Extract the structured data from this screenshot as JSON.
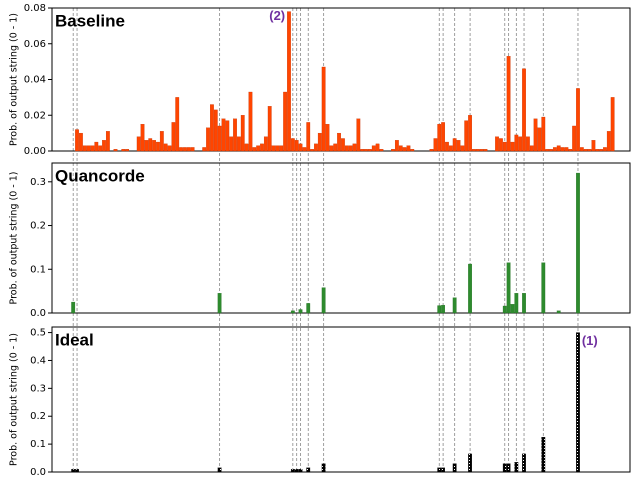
{
  "chart_data": [
    {
      "type": "bar",
      "title": "Baseline",
      "y_label": "Prob. of output string (0 - 1)",
      "color": "#ff4500",
      "annotation": "(2)",
      "ylim": [
        0,
        0.08
      ],
      "yticks": [
        {
          "value": 0,
          "label": "0.00"
        },
        {
          "value": 0.02,
          "label": "0.02"
        },
        {
          "value": 0.04,
          "label": "0.04"
        },
        {
          "value": 0.06,
          "label": "0.06"
        },
        {
          "value": 0.08,
          "label": "0.08"
        }
      ],
      "values": [
        0,
        0,
        0,
        0,
        0,
        0,
        0.012,
        0.01,
        0.003,
        0.003,
        0.003,
        0.005,
        0.003,
        0.006,
        0.011,
        0,
        0.001,
        0,
        0.001,
        0.001,
        0,
        0,
        0.008,
        0.015,
        0.006,
        0.007,
        0.006,
        0.005,
        0.011,
        0.004,
        0.003,
        0.016,
        0.03,
        0.002,
        0.002,
        0.002,
        0.002,
        0,
        0,
        0.002,
        0.013,
        0.026,
        0.023,
        0.014,
        0.018,
        0.017,
        0.008,
        0.018,
        0.008,
        0.02,
        0.004,
        0.033,
        0.002,
        0.003,
        0.004,
        0.008,
        0.025,
        0.003,
        0.003,
        0.003,
        0.033,
        0.078,
        0.007,
        0.006,
        0.004,
        0.002,
        0.016,
        0.001,
        0.004,
        0.01,
        0.047,
        0.015,
        0.003,
        0.004,
        0.01,
        0.007,
        0.003,
        0.003,
        0.004,
        0.018,
        0.001,
        0.001,
        0.001,
        0.003,
        0.004,
        0.001,
        0,
        0,
        0.001,
        0.006,
        0.003,
        0.002,
        0.003,
        0.001,
        0,
        0,
        0,
        0,
        0.001,
        0.007,
        0.015,
        0.016,
        0.005,
        0.003,
        0.007,
        0.006,
        0.003,
        0.017,
        0.02,
        0.001,
        0.001,
        0.001,
        0.001,
        0,
        0,
        0.008,
        0.007,
        0.005,
        0.053,
        0.005,
        0.009,
        0.008,
        0.046,
        0.008,
        0.003,
        0.018,
        0.013,
        0.019,
        0.001,
        0.001,
        0.002,
        0.003,
        0.002,
        0.002,
        0.001,
        0.014,
        0.035,
        0.002,
        0.001,
        0.001,
        0.006,
        0.001,
        0.001,
        0.002,
        0.011,
        0.03,
        0,
        0,
        0,
        0
      ]
    },
    {
      "type": "bar",
      "title": "Quancorde",
      "y_label": "Prob. of output string (0 - 1)",
      "color": "#2e8b2e",
      "ylim": [
        0,
        0.343
      ],
      "yticks": [
        {
          "value": 0,
          "label": "0.0"
        },
        0.1,
        0.2,
        0.3
      ],
      "values": [
        0,
        0,
        0,
        0,
        0,
        0.025,
        0,
        0,
        0,
        0,
        0,
        0,
        0,
        0,
        0,
        0,
        0,
        0,
        0,
        0,
        0,
        0,
        0,
        0,
        0,
        0,
        0,
        0,
        0,
        0,
        0,
        0,
        0,
        0,
        0,
        0,
        0,
        0,
        0,
        0,
        0,
        0,
        0,
        0.045,
        0,
        0,
        0,
        0,
        0,
        0,
        0,
        0,
        0,
        0,
        0,
        0,
        0,
        0,
        0,
        0,
        0,
        0,
        0.005,
        0,
        0.008,
        0,
        0.022,
        0,
        0,
        0,
        0.058,
        0,
        0,
        0,
        0,
        0,
        0,
        0,
        0,
        0,
        0,
        0,
        0,
        0,
        0,
        0,
        0,
        0,
        0,
        0,
        0,
        0,
        0,
        0,
        0,
        0,
        0,
        0,
        0,
        0,
        0.017,
        0.018,
        0,
        0,
        0.035,
        0,
        0,
        0,
        0.112,
        0,
        0,
        0,
        0,
        0,
        0,
        0,
        0,
        0.016,
        0.115,
        0.02,
        0.045,
        0,
        0.045,
        0,
        0,
        0,
        0,
        0.115,
        0,
        0,
        0,
        0.005,
        0,
        0,
        0,
        0,
        0.32,
        0,
        0,
        0,
        0,
        0,
        0,
        0,
        0,
        0,
        0,
        0,
        0,
        0
      ]
    },
    {
      "type": "bar",
      "title": "Ideal",
      "y_label": "Prob. of output string (0 - 1)",
      "color": "#000000",
      "annotation": "(1)",
      "ylim": [
        0,
        0.52
      ],
      "yticks": [
        {
          "value": 0,
          "label": "0.0"
        },
        0.1,
        0.2,
        0.3,
        0.4,
        0.5
      ],
      "values": [
        0,
        0,
        0,
        0,
        0,
        0.01,
        0.01,
        0,
        0,
        0,
        0,
        0,
        0,
        0,
        0,
        0,
        0,
        0,
        0,
        0,
        0,
        0,
        0,
        0,
        0,
        0,
        0,
        0,
        0,
        0,
        0,
        0,
        0,
        0,
        0,
        0,
        0,
        0,
        0,
        0,
        0,
        0,
        0,
        0.015,
        0,
        0,
        0,
        0,
        0,
        0,
        0,
        0,
        0,
        0,
        0,
        0,
        0,
        0,
        0,
        0,
        0,
        0,
        0.01,
        0.01,
        0.01,
        0,
        0.015,
        0,
        0,
        0,
        0.03,
        0,
        0,
        0,
        0,
        0,
        0,
        0,
        0,
        0,
        0,
        0,
        0,
        0,
        0,
        0,
        0,
        0,
        0,
        0,
        0,
        0,
        0,
        0,
        0,
        0,
        0,
        0,
        0,
        0,
        0.015,
        0.015,
        0,
        0,
        0.03,
        0,
        0,
        0,
        0.065,
        0,
        0,
        0,
        0,
        0,
        0,
        0,
        0,
        0.03,
        0.03,
        0,
        0.035,
        0,
        0.065,
        0,
        0,
        0,
        0,
        0.125,
        0,
        0,
        0,
        0,
        0,
        0,
        0,
        0,
        0.5,
        0,
        0,
        0,
        0,
        0,
        0,
        0,
        0,
        0,
        0,
        0,
        0,
        0
      ]
    }
  ]
}
